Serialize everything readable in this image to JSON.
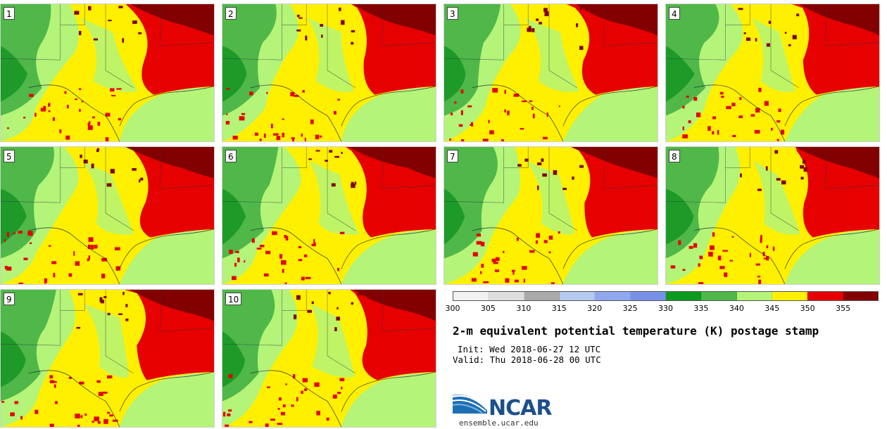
{
  "title": "2-m equivalent potential temperature (K) postage stamp",
  "init": "Init: Wed 2018-06-27 12 UTC",
  "valid": "Valid: Thu 2018-06-28 00 UTC",
  "logo": {
    "name": "NCAR",
    "url": "ensemble.ucar.edu"
  },
  "members": [
    "1",
    "2",
    "3",
    "4",
    "5",
    "6",
    "7",
    "8",
    "9",
    "10"
  ],
  "colorbar": {
    "unit": "K",
    "colors": [
      "#f2f2f2",
      "#dedede",
      "#aaaaaa",
      "#b4c8f0",
      "#8fa8f0",
      "#7890e8",
      "#0a9a1e",
      "#4fb848",
      "#b4f478",
      "#fff000",
      "#e60000",
      "#820000"
    ],
    "ticks": [
      "300",
      "305",
      "310",
      "315",
      "320",
      "325",
      "330",
      "335",
      "340",
      "345",
      "350",
      "355"
    ],
    "range": [
      300,
      360
    ]
  },
  "field_colors": {
    "dark_green": "#1e9a28",
    "mid_green": "#4fb848",
    "light_green": "#b4f478",
    "yellow": "#fff000",
    "red": "#e60000",
    "dark_red": "#820000"
  }
}
